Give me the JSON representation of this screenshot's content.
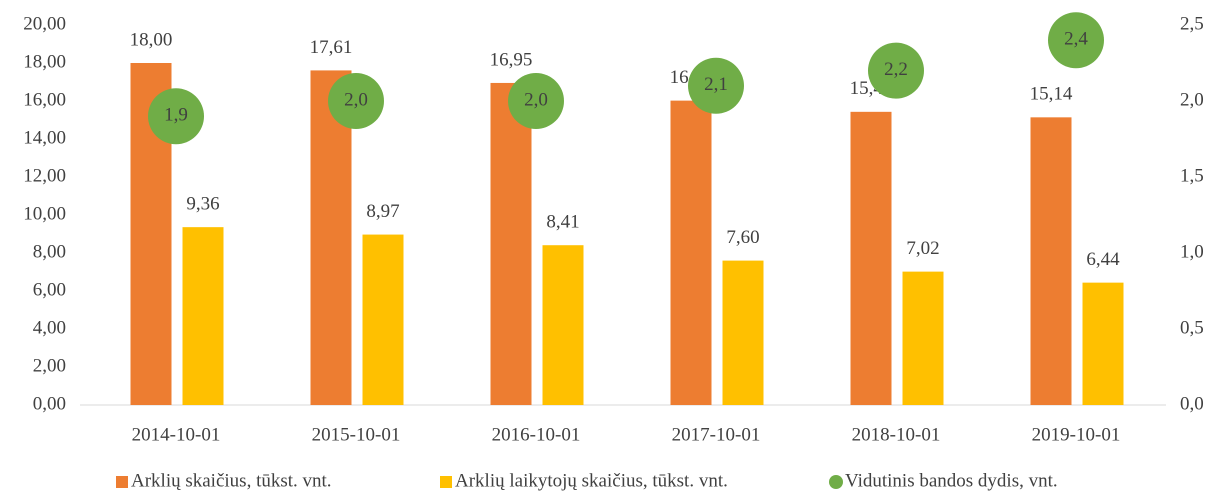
{
  "chart_data": {
    "type": "bar",
    "categories": [
      "2014-10-01",
      "2015-10-01",
      "2016-10-01",
      "2017-10-01",
      "2018-10-01",
      "2019-10-01"
    ],
    "series": [
      {
        "name": "Arklių skaičius, tūkst. vnt.",
        "color": "#ed7d31",
        "values": [
          18.0,
          17.61,
          16.95,
          16.02,
          15.43,
          15.14
        ],
        "value_labels": [
          "18,00",
          "17,61",
          "16,95",
          "16,02",
          "15,43",
          "15,14"
        ]
      },
      {
        "name": "Arklių laikytojų skaičius, tūkst. vnt.",
        "color": "#ffc000",
        "values": [
          9.36,
          8.97,
          8.41,
          7.6,
          7.02,
          6.44
        ],
        "value_labels": [
          "9,36",
          "8,97",
          "8,41",
          "7,60",
          "7,02",
          "6,44"
        ]
      },
      {
        "name": "Vidutinis bandos dydis, vnt.",
        "color": "#70ad47",
        "axis": "y2",
        "type": "scatter",
        "values": [
          1.9,
          2.0,
          2.0,
          2.1,
          2.2,
          2.4
        ],
        "value_labels": [
          "1,9",
          "2,0",
          "2,0",
          "2,1",
          "2,2",
          "2,4"
        ]
      }
    ],
    "ylim": [
      0,
      20
    ],
    "yticks": [
      {
        "value": 0,
        "label": "0,00"
      },
      {
        "value": 2,
        "label": "2,00"
      },
      {
        "value": 4,
        "label": "4,00"
      },
      {
        "value": 6,
        "label": "6,00"
      },
      {
        "value": 8,
        "label": "8,00"
      },
      {
        "value": 10,
        "label": "10,00"
      },
      {
        "value": 12,
        "label": "12,00"
      },
      {
        "value": 14,
        "label": "14,00"
      },
      {
        "value": 16,
        "label": "16,00"
      },
      {
        "value": 18,
        "label": "18,00"
      },
      {
        "value": 20,
        "label": "20,00"
      }
    ],
    "y2lim": [
      0,
      2.5
    ],
    "y2ticks": [
      {
        "value": 0,
        "label": "0,0"
      },
      {
        "value": 0.5,
        "label": "0,5"
      },
      {
        "value": 1,
        "label": "1,0"
      },
      {
        "value": 1.5,
        "label": "1,5"
      },
      {
        "value": 2,
        "label": "2,0"
      },
      {
        "value": 2.5,
        "label": "2,5"
      }
    ],
    "grid": false,
    "legend": "bottom"
  }
}
